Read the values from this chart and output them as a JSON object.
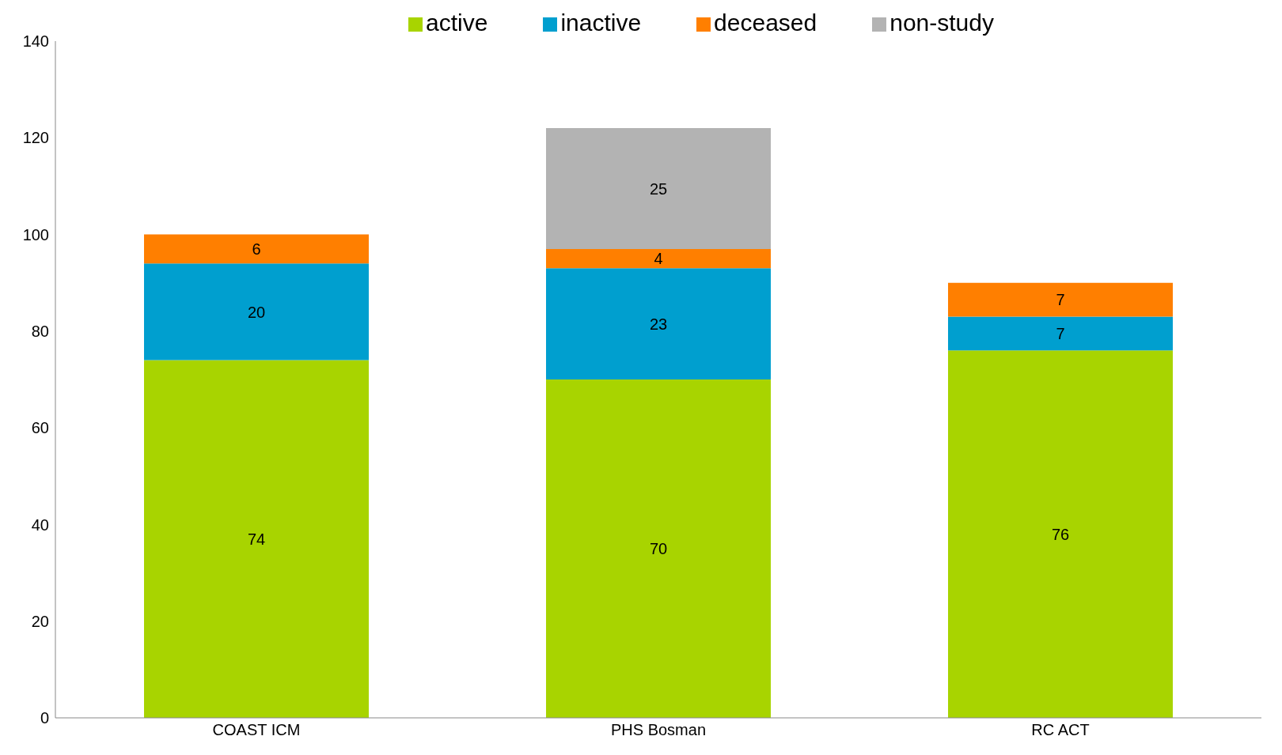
{
  "chart_data": {
    "type": "bar",
    "stacked": true,
    "categories": [
      "COAST ICM",
      "PHS Bosman",
      "RC ACT"
    ],
    "series": [
      {
        "name": "active",
        "color": "#a8d400",
        "values": [
          74,
          70,
          76
        ]
      },
      {
        "name": "inactive",
        "color": "#009fcf",
        "values": [
          20,
          23,
          7
        ]
      },
      {
        "name": "deceased",
        "color": "#ff7f00",
        "values": [
          6,
          4,
          7
        ]
      },
      {
        "name": "non-study",
        "color": "#b3b3b3",
        "values": [
          null,
          25,
          null
        ]
      }
    ],
    "ylim": [
      0,
      140
    ],
    "yticks": [
      0,
      20,
      40,
      60,
      80,
      100,
      120,
      140
    ],
    "grid": false,
    "legend": "top",
    "data_labels": true
  }
}
